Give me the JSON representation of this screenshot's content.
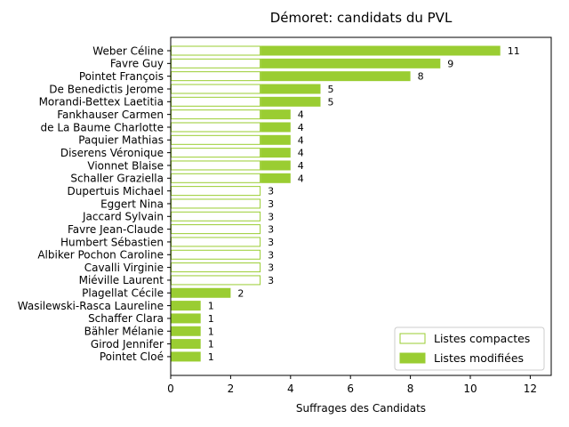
{
  "chart_data": {
    "type": "bar",
    "orientation": "horizontal",
    "stacked": true,
    "title": "Démoret: candidats du PVL",
    "xlabel": "Suffrages des Candidats",
    "ylabel": "",
    "xlim": [
      0,
      12.7
    ],
    "xticks": [
      0,
      2,
      4,
      6,
      8,
      10,
      12
    ],
    "grid": false,
    "legend_position": "lower-right",
    "colors": {
      "bar": "#9acd32",
      "edge": "#9acd32",
      "compact_fill": "#ffffff"
    },
    "categories": [
      "Weber Céline",
      "Favre Guy",
      "Pointet François",
      "De Benedictis Jerome",
      "Morandi-Bettex Laetitia",
      "Fankhauser Carmen",
      "de La Baume Charlotte",
      "Paquier Mathias",
      "Diserens Véronique",
      "Vionnet Blaise",
      "Schaller Graziella",
      "Dupertuis Michael",
      "Eggert Nina",
      "Jaccard Sylvain",
      "Favre Jean-Claude",
      "Humbert Sébastien",
      "Albiker Pochon Caroline",
      "Cavalli Virginie",
      "Miéville Laurent",
      "Plagellat Cécile",
      "Wasilewski-Rasca Laureline",
      "Schaffer Clara",
      "Bähler Mélanie",
      "Girod Jennifer",
      "Pointet Cloé"
    ],
    "series": [
      {
        "name": "Listes compactes",
        "values": [
          3,
          3,
          3,
          3,
          3,
          3,
          3,
          3,
          3,
          3,
          3,
          3,
          3,
          3,
          3,
          3,
          3,
          3,
          3,
          0,
          0,
          0,
          0,
          0,
          0
        ]
      },
      {
        "name": "Listes modifiées",
        "values": [
          8,
          6,
          5,
          2,
          2,
          1,
          1,
          1,
          1,
          1,
          1,
          0,
          0,
          0,
          0,
          0,
          0,
          0,
          0,
          2,
          1,
          1,
          1,
          1,
          1
        ]
      }
    ],
    "totals": [
      11,
      9,
      8,
      5,
      5,
      4,
      4,
      4,
      4,
      4,
      4,
      3,
      3,
      3,
      3,
      3,
      3,
      3,
      3,
      2,
      1,
      1,
      1,
      1,
      1
    ]
  }
}
